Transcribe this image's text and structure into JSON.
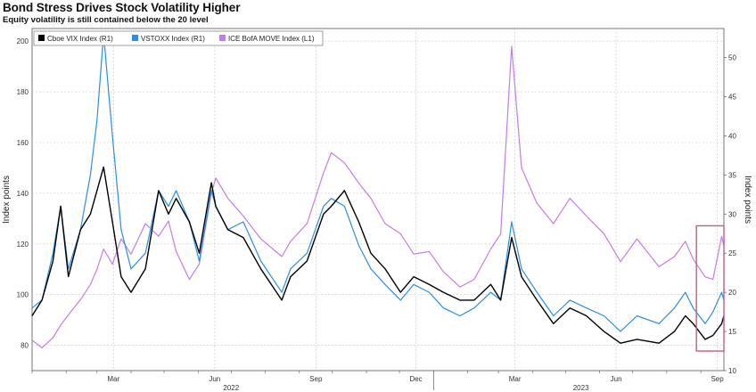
{
  "chart_data": {
    "type": "line",
    "title": "Bond Stress Drives Stock Volatility Higher",
    "subtitle": "Equity volatility is still contained below the 20 level",
    "ylabel_left": "Index points",
    "ylabel_right": "Index points",
    "ylim_left": [
      70,
      205
    ],
    "ylim_right": [
      10,
      53.7
    ],
    "yticks_left": [
      80,
      100,
      120,
      140,
      160,
      180,
      200
    ],
    "yticks_right": [
      10,
      15,
      20,
      25,
      30,
      35,
      40,
      45,
      50
    ],
    "x_tick_labels": [
      "Mar",
      "Jun",
      "Sep",
      "Dec",
      "Mar",
      "Jun",
      "Sep"
    ],
    "x_year_labels": [
      "2022",
      "2023"
    ],
    "x_range": [
      "2022-01-01",
      "2023-09-22"
    ],
    "grid": true,
    "legend_position": "top-left",
    "series": [
      {
        "name": "Cboe VIX Index (R1)",
        "axis": "right",
        "color": "#000000",
        "points": [
          [
            "2022-01-01",
            17
          ],
          [
            "2022-01-10",
            19
          ],
          [
            "2022-01-20",
            24
          ],
          [
            "2022-01-27",
            31
          ],
          [
            "2022-02-03",
            22
          ],
          [
            "2022-02-14",
            28
          ],
          [
            "2022-02-23",
            30
          ],
          [
            "2022-03-01",
            33
          ],
          [
            "2022-03-07",
            36
          ],
          [
            "2022-03-15",
            29
          ],
          [
            "2022-03-23",
            22
          ],
          [
            "2022-04-01",
            20
          ],
          [
            "2022-04-14",
            23
          ],
          [
            "2022-04-26",
            33
          ],
          [
            "2022-05-05",
            30
          ],
          [
            "2022-05-12",
            32
          ],
          [
            "2022-05-24",
            29
          ],
          [
            "2022-06-02",
            25
          ],
          [
            "2022-06-13",
            34
          ],
          [
            "2022-06-17",
            31
          ],
          [
            "2022-06-28",
            28
          ],
          [
            "2022-07-12",
            27
          ],
          [
            "2022-07-28",
            23
          ],
          [
            "2022-08-16",
            19
          ],
          [
            "2022-08-24",
            22
          ],
          [
            "2022-09-08",
            24
          ],
          [
            "2022-09-23",
            30
          ],
          [
            "2022-09-30",
            31
          ],
          [
            "2022-10-12",
            33
          ],
          [
            "2022-10-25",
            29
          ],
          [
            "2022-11-05",
            25
          ],
          [
            "2022-11-18",
            23
          ],
          [
            "2022-12-02",
            20
          ],
          [
            "2022-12-14",
            22
          ],
          [
            "2022-12-28",
            21
          ],
          [
            "2023-01-10",
            20
          ],
          [
            "2023-01-25",
            19
          ],
          [
            "2023-02-07",
            19
          ],
          [
            "2023-02-22",
            21
          ],
          [
            "2023-03-03",
            19
          ],
          [
            "2023-03-13",
            27
          ],
          [
            "2023-03-22",
            22
          ],
          [
            "2023-04-05",
            19
          ],
          [
            "2023-04-20",
            16
          ],
          [
            "2023-05-05",
            18
          ],
          [
            "2023-05-20",
            17
          ],
          [
            "2023-06-05",
            15
          ],
          [
            "2023-06-20",
            13.5
          ],
          [
            "2023-07-05",
            14
          ],
          [
            "2023-07-25",
            13.5
          ],
          [
            "2023-08-08",
            15
          ],
          [
            "2023-08-18",
            17
          ],
          [
            "2023-08-25",
            16
          ],
          [
            "2023-09-05",
            14
          ],
          [
            "2023-09-12",
            14.5
          ],
          [
            "2023-09-20",
            16
          ],
          [
            "2023-09-22",
            17
          ]
        ]
      },
      {
        "name": "VSTOXX Index (R1)",
        "axis": "right",
        "color": "#2d8fe0",
        "points": [
          [
            "2022-01-01",
            18
          ],
          [
            "2022-01-10",
            19
          ],
          [
            "2022-01-20",
            25
          ],
          [
            "2022-01-27",
            31
          ],
          [
            "2022-02-03",
            23
          ],
          [
            "2022-02-14",
            28
          ],
          [
            "2022-02-23",
            35
          ],
          [
            "2022-03-01",
            42
          ],
          [
            "2022-03-07",
            53
          ],
          [
            "2022-03-15",
            40
          ],
          [
            "2022-03-23",
            28
          ],
          [
            "2022-04-01",
            23
          ],
          [
            "2022-04-14",
            25
          ],
          [
            "2022-04-26",
            33
          ],
          [
            "2022-05-05",
            31
          ],
          [
            "2022-05-12",
            33
          ],
          [
            "2022-05-24",
            29
          ],
          [
            "2022-06-02",
            24
          ],
          [
            "2022-06-13",
            33
          ],
          [
            "2022-06-17",
            31
          ],
          [
            "2022-06-28",
            28
          ],
          [
            "2022-07-12",
            29
          ],
          [
            "2022-07-28",
            24
          ],
          [
            "2022-08-16",
            20
          ],
          [
            "2022-08-24",
            23
          ],
          [
            "2022-09-08",
            25
          ],
          [
            "2022-09-23",
            31
          ],
          [
            "2022-09-30",
            32
          ],
          [
            "2022-10-12",
            31
          ],
          [
            "2022-10-25",
            26
          ],
          [
            "2022-11-05",
            23
          ],
          [
            "2022-11-18",
            21
          ],
          [
            "2022-12-02",
            19
          ],
          [
            "2022-12-14",
            21
          ],
          [
            "2022-12-28",
            20
          ],
          [
            "2023-01-10",
            18
          ],
          [
            "2023-01-25",
            17
          ],
          [
            "2023-02-07",
            18
          ],
          [
            "2023-02-22",
            20
          ],
          [
            "2023-03-03",
            19
          ],
          [
            "2023-03-13",
            29
          ],
          [
            "2023-03-22",
            23
          ],
          [
            "2023-04-05",
            20
          ],
          [
            "2023-04-20",
            17
          ],
          [
            "2023-05-05",
            19
          ],
          [
            "2023-05-20",
            18
          ],
          [
            "2023-06-05",
            17
          ],
          [
            "2023-06-20",
            15
          ],
          [
            "2023-07-05",
            17
          ],
          [
            "2023-07-25",
            16
          ],
          [
            "2023-08-08",
            18
          ],
          [
            "2023-08-18",
            20
          ],
          [
            "2023-08-25",
            18
          ],
          [
            "2023-09-05",
            16
          ],
          [
            "2023-09-12",
            17.5
          ],
          [
            "2023-09-20",
            20
          ],
          [
            "2023-09-22",
            19
          ]
        ]
      },
      {
        "name": "ICE BofA MOVE Index (L1)",
        "axis": "left",
        "color": "#c27ee8",
        "points": [
          [
            "2022-01-01",
            82
          ],
          [
            "2022-01-10",
            79
          ],
          [
            "2022-01-20",
            83
          ],
          [
            "2022-01-27",
            88
          ],
          [
            "2022-02-03",
            92
          ],
          [
            "2022-02-14",
            98
          ],
          [
            "2022-02-23",
            104
          ],
          [
            "2022-03-01",
            110
          ],
          [
            "2022-03-07",
            118
          ],
          [
            "2022-03-15",
            112
          ],
          [
            "2022-03-23",
            122
          ],
          [
            "2022-04-01",
            116
          ],
          [
            "2022-04-14",
            128
          ],
          [
            "2022-04-26",
            123
          ],
          [
            "2022-05-05",
            129
          ],
          [
            "2022-05-12",
            117
          ],
          [
            "2022-05-24",
            106
          ],
          [
            "2022-06-02",
            112
          ],
          [
            "2022-06-13",
            140
          ],
          [
            "2022-06-17",
            146
          ],
          [
            "2022-06-28",
            138
          ],
          [
            "2022-07-12",
            131
          ],
          [
            "2022-07-28",
            122
          ],
          [
            "2022-08-16",
            115
          ],
          [
            "2022-08-24",
            121
          ],
          [
            "2022-09-08",
            128
          ],
          [
            "2022-09-23",
            148
          ],
          [
            "2022-09-30",
            156
          ],
          [
            "2022-10-12",
            152
          ],
          [
            "2022-10-25",
            144
          ],
          [
            "2022-11-05",
            138
          ],
          [
            "2022-11-18",
            128
          ],
          [
            "2022-12-02",
            124
          ],
          [
            "2022-12-14",
            116
          ],
          [
            "2022-12-28",
            117
          ],
          [
            "2023-01-10",
            109
          ],
          [
            "2023-01-25",
            103
          ],
          [
            "2023-02-07",
            106
          ],
          [
            "2023-02-22",
            118
          ],
          [
            "2023-03-03",
            124
          ],
          [
            "2023-03-13",
            198
          ],
          [
            "2023-03-22",
            150
          ],
          [
            "2023-04-05",
            136
          ],
          [
            "2023-04-20",
            128
          ],
          [
            "2023-05-05",
            138
          ],
          [
            "2023-05-20",
            131
          ],
          [
            "2023-06-05",
            124
          ],
          [
            "2023-06-20",
            113
          ],
          [
            "2023-07-05",
            122
          ],
          [
            "2023-07-25",
            111
          ],
          [
            "2023-08-08",
            115
          ],
          [
            "2023-08-18",
            121
          ],
          [
            "2023-08-25",
            114
          ],
          [
            "2023-09-05",
            107
          ],
          [
            "2023-09-12",
            106
          ],
          [
            "2023-09-20",
            123
          ],
          [
            "2023-09-22",
            119
          ]
        ]
      }
    ],
    "annotation": {
      "type": "box",
      "x_range": [
        "2023-08-28",
        "2023-09-22"
      ],
      "y_range_right": [
        12.5,
        28.5
      ],
      "color": "#c0607a"
    }
  }
}
